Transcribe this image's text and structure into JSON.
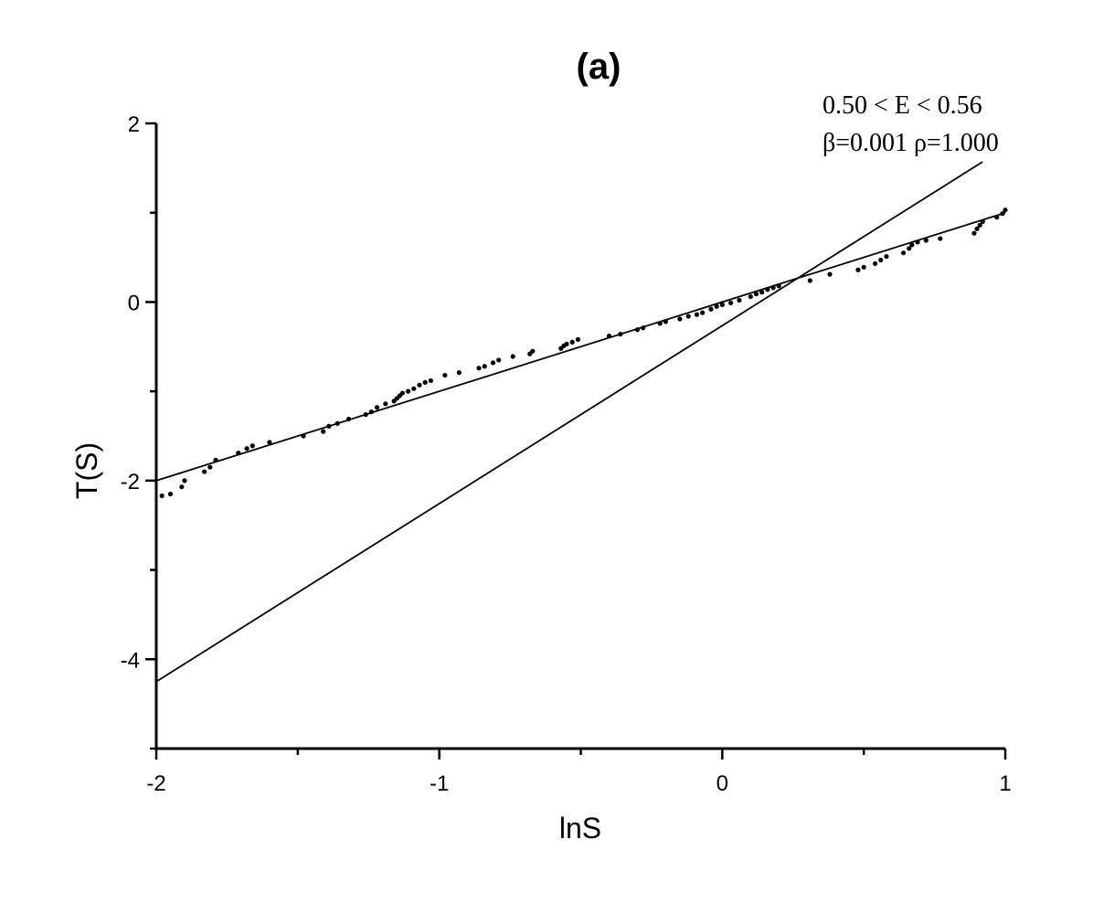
{
  "chart_data": {
    "type": "scatter",
    "title": "(a)",
    "xlabel": "lnS",
    "ylabel": "T(S)",
    "xlim": [
      -2,
      1
    ],
    "ylim": [
      -5,
      2
    ],
    "x_ticks": [
      -2,
      -1,
      0,
      1
    ],
    "y_ticks": [
      -4,
      -2,
      0,
      2
    ],
    "x_minor_ticks": [
      -1.5,
      -0.5,
      0.5
    ],
    "y_minor_ticks": [
      -5,
      -3,
      -1,
      1
    ],
    "grid": false,
    "annotation": {
      "line1": "0.50 < E < 0.56",
      "line2": "β=0.001 ρ=1.000"
    },
    "lines": [
      {
        "x": [
          -2,
          1
        ],
        "y": [
          -2.0,
          1.0
        ]
      },
      {
        "x": [
          -2,
          0.92
        ],
        "y": [
          -4.25,
          1.57
        ]
      }
    ],
    "points": [
      [
        -1.98,
        -2.17
      ],
      [
        -1.95,
        -2.15
      ],
      [
        -1.91,
        -2.07
      ],
      [
        -1.9,
        -2.0
      ],
      [
        -1.83,
        -1.9
      ],
      [
        -1.81,
        -1.85
      ],
      [
        -1.79,
        -1.77
      ],
      [
        -1.71,
        -1.69
      ],
      [
        -1.68,
        -1.64
      ],
      [
        -1.66,
        -1.61
      ],
      [
        -1.6,
        -1.57
      ],
      [
        -1.48,
        -1.5
      ],
      [
        -1.41,
        -1.45
      ],
      [
        -1.39,
        -1.39
      ],
      [
        -1.36,
        -1.36
      ],
      [
        -1.32,
        -1.31
      ],
      [
        -1.26,
        -1.26
      ],
      [
        -1.24,
        -1.23
      ],
      [
        -1.22,
        -1.18
      ],
      [
        -1.19,
        -1.14
      ],
      [
        -1.16,
        -1.11
      ],
      [
        -1.15,
        -1.08
      ],
      [
        -1.14,
        -1.05
      ],
      [
        -1.13,
        -1.02
      ],
      [
        -1.11,
        -1.0
      ],
      [
        -1.09,
        -0.97
      ],
      [
        -1.07,
        -0.93
      ],
      [
        -1.05,
        -0.9
      ],
      [
        -1.03,
        -0.88
      ],
      [
        -0.98,
        -0.82
      ],
      [
        -0.93,
        -0.79
      ],
      [
        -0.86,
        -0.74
      ],
      [
        -0.84,
        -0.72
      ],
      [
        -0.81,
        -0.68
      ],
      [
        -0.79,
        -0.65
      ],
      [
        -0.74,
        -0.61
      ],
      [
        -0.68,
        -0.58
      ],
      [
        -0.67,
        -0.55
      ],
      [
        -0.57,
        -0.52
      ],
      [
        -0.56,
        -0.49
      ],
      [
        -0.55,
        -0.47
      ],
      [
        -0.53,
        -0.45
      ],
      [
        -0.51,
        -0.42
      ],
      [
        -0.4,
        -0.38
      ],
      [
        -0.36,
        -0.36
      ],
      [
        -0.3,
        -0.31
      ],
      [
        -0.28,
        -0.29
      ],
      [
        -0.22,
        -0.24
      ],
      [
        -0.2,
        -0.22
      ],
      [
        -0.15,
        -0.19
      ],
      [
        -0.12,
        -0.16
      ],
      [
        -0.09,
        -0.14
      ],
      [
        -0.07,
        -0.12
      ],
      [
        -0.04,
        -0.08
      ],
      [
        -0.02,
        -0.05
      ],
      [
        0.0,
        -0.03
      ],
      [
        0.03,
        -0.01
      ],
      [
        0.06,
        0.02
      ],
      [
        0.1,
        0.06
      ],
      [
        0.12,
        0.09
      ],
      [
        0.14,
        0.11
      ],
      [
        0.16,
        0.14
      ],
      [
        0.18,
        0.16
      ],
      [
        0.2,
        0.18
      ],
      [
        0.31,
        0.24
      ],
      [
        0.38,
        0.31
      ],
      [
        0.48,
        0.36
      ],
      [
        0.5,
        0.39
      ],
      [
        0.54,
        0.43
      ],
      [
        0.56,
        0.47
      ],
      [
        0.58,
        0.51
      ],
      [
        0.64,
        0.55
      ],
      [
        0.66,
        0.6
      ],
      [
        0.67,
        0.64
      ],
      [
        0.69,
        0.67
      ],
      [
        0.72,
        0.69
      ],
      [
        0.77,
        0.71
      ],
      [
        0.89,
        0.77
      ],
      [
        0.9,
        0.82
      ],
      [
        0.91,
        0.86
      ],
      [
        0.92,
        0.9
      ],
      [
        0.97,
        0.95
      ],
      [
        0.99,
        0.99
      ],
      [
        1.0,
        1.03
      ]
    ]
  }
}
